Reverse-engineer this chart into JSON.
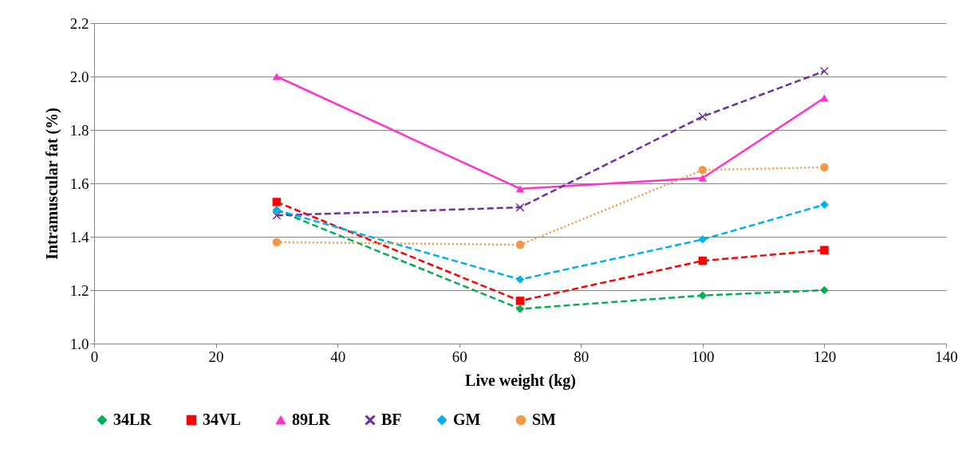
{
  "chart_data": {
    "type": "line",
    "xlabel": "Live weight (kg)",
    "ylabel": "Intramuscular fat (%)",
    "x": [
      30,
      70,
      100,
      120
    ],
    "series": [
      {
        "name": "34LR",
        "color": "#00b050",
        "marker": "diamond",
        "line_style": "dashed",
        "values": [
          1.5,
          1.13,
          1.18,
          1.2
        ]
      },
      {
        "name": "34VL",
        "color": "#ff0000",
        "marker": "square",
        "line_style": "dashed",
        "values": [
          1.53,
          1.16,
          1.31,
          1.35
        ]
      },
      {
        "name": "89LR",
        "color": "#ff33cc",
        "marker": "triangle",
        "line_style": "solid",
        "values": [
          2.0,
          1.58,
          1.62,
          1.92
        ]
      },
      {
        "name": "BF",
        "color": "#7030a0",
        "marker": "cross",
        "line_style": "dashed",
        "values": [
          1.48,
          1.51,
          1.85,
          2.02
        ]
      },
      {
        "name": "GM",
        "color": "#00b0f0",
        "marker": "diamond",
        "line_style": "dashed",
        "values": [
          1.5,
          1.24,
          1.39,
          1.52
        ]
      },
      {
        "name": "SM",
        "color": "#f79646",
        "marker": "circle",
        "line_style": "dotted",
        "values": [
          1.38,
          1.37,
          1.65,
          1.66
        ]
      }
    ],
    "xlim": [
      0,
      140
    ],
    "xticks": [
      0,
      20,
      40,
      60,
      80,
      100,
      120,
      140
    ],
    "ylim": [
      1.0,
      2.2
    ],
    "yticks": [
      {
        "value": 1.0,
        "label": "1.0"
      },
      1.2,
      1.4,
      1.6,
      1.8,
      {
        "value": 2.0,
        "label": "2.0"
      },
      2.2
    ],
    "grid": "y",
    "legend": "bottom"
  }
}
